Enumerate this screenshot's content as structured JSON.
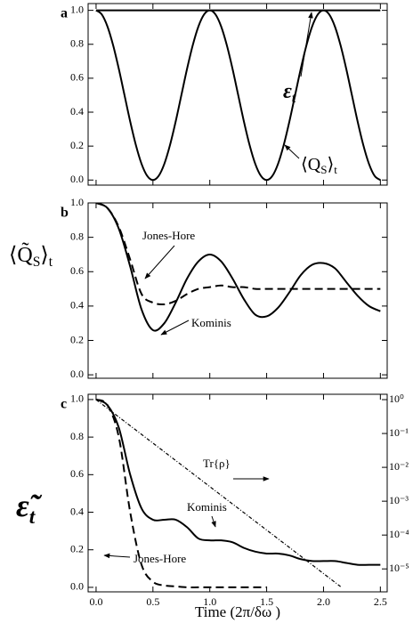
{
  "chart_data": [
    {
      "type": "line",
      "panel": "a",
      "xlim": [
        -0.07,
        2.56
      ],
      "xticks": [
        0,
        0.5,
        1,
        1.5,
        2,
        2.5
      ],
      "ylim": [
        -0.03,
        1.04
      ],
      "yticks": [
        {
          "value": 0,
          "label": "0.0"
        },
        0.2,
        0.4,
        0.6,
        0.8,
        {
          "value": 1,
          "label": "1.0"
        }
      ],
      "x": [
        0,
        0.05,
        0.1,
        0.15,
        0.2,
        0.25,
        0.3,
        0.35,
        0.4,
        0.45,
        0.5,
        0.55,
        0.6,
        0.65,
        0.7,
        0.75,
        0.8,
        0.85,
        0.9,
        0.95,
        1,
        1.05,
        1.1,
        1.15,
        1.2,
        1.25,
        1.3,
        1.35,
        1.4,
        1.45,
        1.5,
        1.55,
        1.6,
        1.65,
        1.7,
        1.75,
        1.8,
        1.85,
        1.9,
        1.95,
        2,
        2.05,
        2.1,
        2.15,
        2.2,
        2.25,
        2.3,
        2.35,
        2.4,
        2.45,
        2.5
      ],
      "series": [
        {
          "name": "ε",
          "color": "#000000",
          "dash": "solid",
          "x": [
            0,
            2.5
          ],
          "values": [
            1,
            1
          ]
        },
        {
          "name": "Q",
          "color": "#000000",
          "dash": "solid",
          "values": [
            1,
            0.976,
            0.905,
            0.794,
            0.655,
            0.5,
            0.345,
            0.206,
            0.095,
            0.024,
            0,
            0.024,
            0.095,
            0.206,
            0.345,
            0.5,
            0.655,
            0.794,
            0.905,
            0.976,
            1,
            0.976,
            0.905,
            0.794,
            0.655,
            0.5,
            0.345,
            0.206,
            0.095,
            0.024,
            0,
            0.024,
            0.095,
            0.206,
            0.345,
            0.5,
            0.655,
            0.794,
            0.905,
            0.976,
            1,
            0.976,
            0.905,
            0.794,
            0.655,
            0.5,
            0.345,
            0.206,
            0.095,
            0.024,
            0
          ]
        }
      ],
      "annotations": [
        [
          "ε",
          "t"
        ],
        [
          "⟨Q",
          "S",
          "⟩",
          "t"
        ]
      ]
    },
    {
      "type": "line",
      "panel": "b",
      "ylabel": [
        "⟨Q̃",
        "S",
        "⟩",
        "t"
      ],
      "xlim": [
        -0.07,
        2.56
      ],
      "xticks": [
        0,
        0.5,
        1,
        1.5,
        2,
        2.5
      ],
      "ylim": [
        -0.02,
        1.0
      ],
      "yticks": [
        {
          "value": 0,
          "label": "0.0"
        },
        0.2,
        0.4,
        0.6,
        0.8,
        {
          "value": 1,
          "label": "1.0"
        }
      ],
      "x": [
        0,
        0.1,
        0.2,
        0.3,
        0.4,
        0.5,
        0.6,
        0.7,
        0.8,
        0.9,
        1,
        1.1,
        1.2,
        1.3,
        1.4,
        1.5,
        1.6,
        1.7,
        1.8,
        1.9,
        2,
        2.1,
        2.2,
        2.3,
        2.4,
        2.5
      ],
      "series": [
        {
          "name": "Kominis",
          "color": "#000000",
          "dash": "solid",
          "values": [
            1,
            0.97,
            0.85,
            0.63,
            0.38,
            0.26,
            0.3,
            0.42,
            0.56,
            0.66,
            0.7,
            0.66,
            0.56,
            0.44,
            0.35,
            0.34,
            0.39,
            0.48,
            0.58,
            0.64,
            0.65,
            0.62,
            0.54,
            0.46,
            0.4,
            0.37
          ]
        },
        {
          "name": "Jones-Hore",
          "color": "#000000",
          "dash": "dashed",
          "values": [
            1,
            0.97,
            0.86,
            0.67,
            0.47,
            0.42,
            0.41,
            0.43,
            0.47,
            0.5,
            0.51,
            0.52,
            0.51,
            0.51,
            0.5,
            0.5,
            0.5,
            0.5,
            0.5,
            0.5,
            0.5,
            0.5,
            0.5,
            0.5,
            0.5,
            0.5
          ]
        }
      ],
      "annotations": [
        "Jones-Hore",
        "Kominis"
      ]
    },
    {
      "type": "line",
      "panel": "c",
      "ylabel": [
        "ε̃",
        "t"
      ],
      "xlabel": "Time (2π/δω )",
      "xlim": [
        -0.07,
        2.56
      ],
      "xticks": [
        {
          "value": 0,
          "label": "0.0"
        },
        0.5,
        {
          "value": 1,
          "label": "1.0"
        },
        1.5,
        {
          "value": 2,
          "label": "2.0"
        },
        2.5
      ],
      "ylim": [
        -0.024,
        1.028
      ],
      "yticks": [
        {
          "value": 0,
          "label": "0.0"
        },
        0.2,
        0.4,
        0.6,
        0.8,
        {
          "value": 1,
          "label": "1.0"
        }
      ],
      "y2lim": [
        2.1e-06,
        1.44
      ],
      "y2log": true,
      "y2ticks": [
        {
          "value": 1,
          "label": "10⁰"
        },
        {
          "value": 0.1,
          "label": "10⁻¹"
        },
        {
          "value": 0.01,
          "label": "10⁻²"
        },
        {
          "value": 0.001,
          "label": "10⁻³"
        },
        {
          "value": 0.0001,
          "label": "10⁻⁴"
        },
        {
          "value": 1e-05,
          "label": "10⁻⁵"
        }
      ],
      "x": [
        0,
        0.1,
        0.2,
        0.3,
        0.4,
        0.5,
        0.6,
        0.7,
        0.8,
        0.9,
        1,
        1.1,
        1.2,
        1.3,
        1.4,
        1.5,
        1.6,
        1.7,
        1.8,
        1.9,
        2,
        2.1,
        2.2,
        2.3,
        2.4,
        2.5
      ],
      "series": [
        {
          "name": "Kominis",
          "color": "#000000",
          "dash": "solid",
          "values": [
            1,
            0.97,
            0.85,
            0.6,
            0.42,
            0.36,
            0.36,
            0.36,
            0.32,
            0.26,
            0.25,
            0.25,
            0.24,
            0.21,
            0.19,
            0.18,
            0.18,
            0.17,
            0.15,
            0.14,
            0.14,
            0.14,
            0.13,
            0.12,
            0.12,
            0.12
          ]
        },
        {
          "name": "Jones-Hore",
          "color": "#000000",
          "dash": "dashed",
          "values": [
            1,
            0.97,
            0.8,
            0.4,
            0.12,
            0.03,
            0.01,
            0.005,
            0,
            0,
            0,
            0,
            0,
            0,
            0,
            0,
            null,
            null,
            null,
            null,
            null,
            null,
            null,
            null,
            null,
            null
          ]
        },
        {
          "name": "Tr{ρ}",
          "color": "#000000",
          "dash": "dashdot",
          "axis": "y2",
          "x": [
            0,
            2.15
          ],
          "values": [
            1,
            3e-06
          ]
        }
      ],
      "annotations": [
        "Tr{ρ}",
        "Kominis",
        "Jones-Hore"
      ]
    }
  ]
}
